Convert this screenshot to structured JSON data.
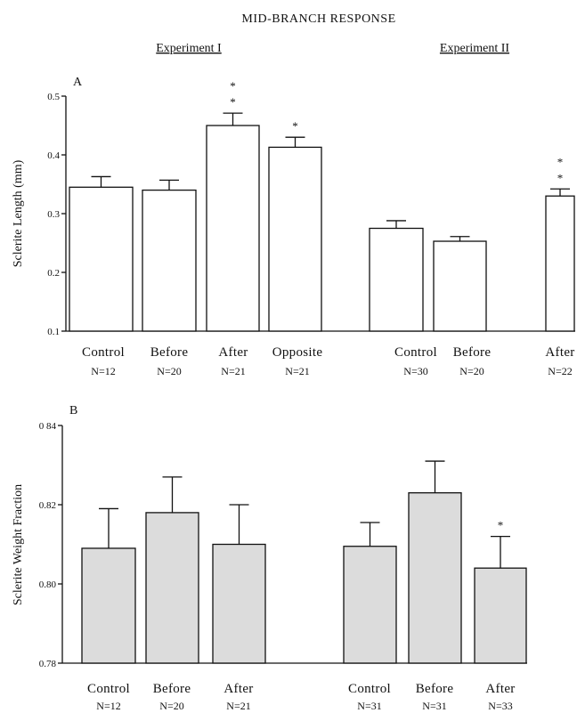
{
  "title": "MID-BRANCH RESPONSE",
  "experiments": [
    "Experiment I",
    "Experiment II"
  ],
  "chart_data": [
    {
      "type": "bar",
      "panel": "A",
      "ylabel": "Sclerite Length (mm)",
      "ylim": [
        0.1,
        0.5
      ],
      "yticks": [
        "0.1",
        "0.2",
        "0.3",
        "0.4",
        "0.5"
      ],
      "groups": [
        {
          "experiment": "Experiment I",
          "categories": [
            "Control",
            "Before",
            "After",
            "Opposite"
          ],
          "n_labels": [
            "N=12",
            "N=20",
            "N=21",
            "N=21"
          ],
          "values": [
            0.345,
            0.34,
            0.45,
            0.413
          ],
          "errors": [
            0.018,
            0.017,
            0.021,
            0.017
          ],
          "markers": [
            "",
            "",
            "*\n*",
            "*"
          ]
        },
        {
          "experiment": "Experiment II",
          "categories": [
            "Control",
            "Before",
            "After"
          ],
          "n_labels": [
            "N=30",
            "N=20",
            "N=22"
          ],
          "values": [
            0.275,
            0.253,
            0.33
          ],
          "errors": [
            0.013,
            0.008,
            0.012
          ],
          "markers": [
            "",
            "",
            "*\n*"
          ]
        }
      ]
    },
    {
      "type": "bar",
      "panel": "B",
      "ylabel": "Sclerite Weight Fraction",
      "ylim": [
        0.78,
        0.84
      ],
      "yticks": [
        "0.78",
        "0.80",
        "0.82",
        "0 84"
      ],
      "groups": [
        {
          "experiment": "Experiment I",
          "categories": [
            "Control",
            "Before",
            "After"
          ],
          "n_labels": [
            "N=12",
            "N=20",
            "N=21"
          ],
          "values": [
            0.809,
            0.818,
            0.81
          ],
          "errors": [
            0.01,
            0.009,
            0.01
          ],
          "markers": [
            "",
            "",
            ""
          ]
        },
        {
          "experiment": "Experiment II",
          "categories": [
            "Control",
            "Before",
            "After"
          ],
          "n_labels": [
            "N=31",
            "N=31",
            "N=33"
          ],
          "values": [
            0.8095,
            0.823,
            0.804
          ],
          "errors": [
            0.006,
            0.008,
            0.008
          ],
          "markers": [
            "",
            "",
            "*"
          ]
        }
      ]
    }
  ]
}
